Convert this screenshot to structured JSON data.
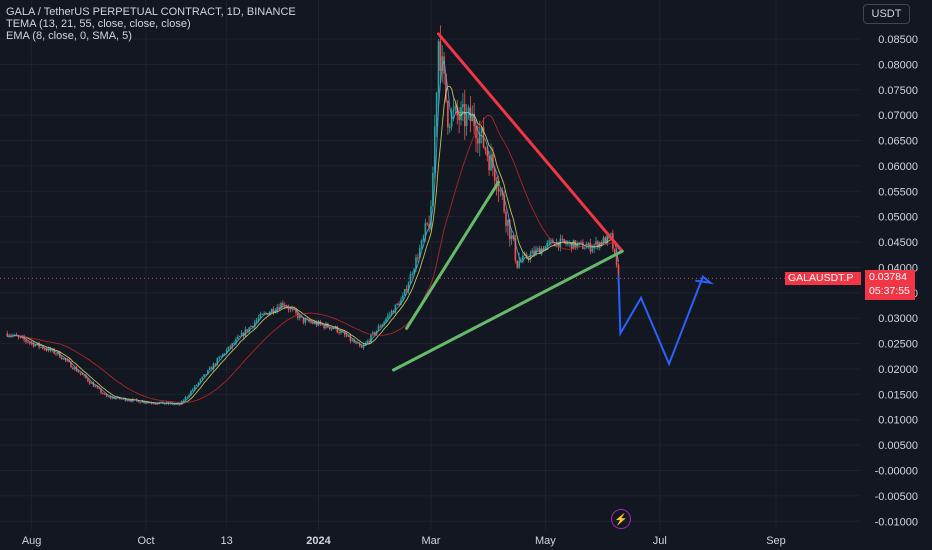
{
  "legend": {
    "title": "GALA / TetherUS PERPETUAL CONTRACT, 1D, BINANCE",
    "tema": "TEMA (13, 21, 55, close, close, close)",
    "ema": "EMA (8, close, 0, SMA, 5)"
  },
  "currency_button": "USDT",
  "symbol_tag": "GALAUSDT.P",
  "last_price": "0.03784",
  "countdown": "05:37:55",
  "colors": {
    "background": "#131722",
    "up": "#26a69a",
    "down": "#ef5350",
    "resistance": "#f23645",
    "support": "#66bb6a",
    "projection": "#2962ff",
    "ema_line": "#e0e05a",
    "tema_line": "#c62828"
  },
  "chart_data": {
    "type": "candlestick",
    "y_axis_ticks": [
      "0.08500",
      "0.08000",
      "0.07500",
      "0.07000",
      "0.06500",
      "0.06000",
      "0.05500",
      "0.05000",
      "0.04500",
      "0.04000",
      "0.03500",
      "0.03000",
      "0.02500",
      "0.02000",
      "0.01500",
      "0.01000",
      "0.00500",
      "-0.00000",
      "-0.00500",
      "-0.01000"
    ],
    "x_axis_labels": [
      "Aug",
      "Oct",
      "13",
      "2024",
      "Mar",
      "May",
      "Jul",
      "Sep"
    ],
    "ylim": [
      -0.0115,
      0.0895
    ],
    "last_price": 0.03784,
    "series": [
      {
        "name": "price",
        "x": [
          "2023-07-19",
          "2023-08-15",
          "2023-09-10",
          "2023-10-01",
          "2023-10-19",
          "2023-11-10",
          "2023-11-30",
          "2023-12-13",
          "2023-12-24",
          "2024-01-10",
          "2024-01-24",
          "2024-02-15",
          "2024-03-01",
          "2024-03-05",
          "2024-03-10",
          "2024-03-24",
          "2024-04-05",
          "2024-04-16",
          "2024-05-05",
          "2024-05-25",
          "2024-06-05",
          "2024-06-09"
        ],
        "y": [
          0.027,
          0.023,
          0.0145,
          0.0135,
          0.013,
          0.0225,
          0.03,
          0.033,
          0.0295,
          0.028,
          0.024,
          0.034,
          0.05,
          0.085,
          0.07,
          0.069,
          0.058,
          0.041,
          0.045,
          0.044,
          0.046,
          0.03784
        ]
      }
    ],
    "trendlines": [
      {
        "role": "resistance",
        "from": [
          "2024-03-05",
          0.086
        ],
        "to": [
          "2024-06-11",
          0.0432
        ]
      },
      {
        "role": "support",
        "from": [
          "2024-02-10",
          0.0198
        ],
        "to": [
          "2024-06-11",
          0.0432
        ]
      },
      {
        "role": "inner-support",
        "from": [
          "2024-02-17",
          0.028
        ],
        "to": [
          "2024-04-06",
          0.0568
        ]
      }
    ],
    "projection": {
      "x": [
        "2024-06-09",
        "2024-06-10",
        "2024-06-21",
        "2024-07-06",
        "2024-07-24",
        "2024-07-28",
        "2024-07-20"
      ],
      "y": [
        0.0385,
        0.027,
        0.034,
        0.021,
        0.0382,
        0.037,
        0.0374
      ]
    }
  }
}
